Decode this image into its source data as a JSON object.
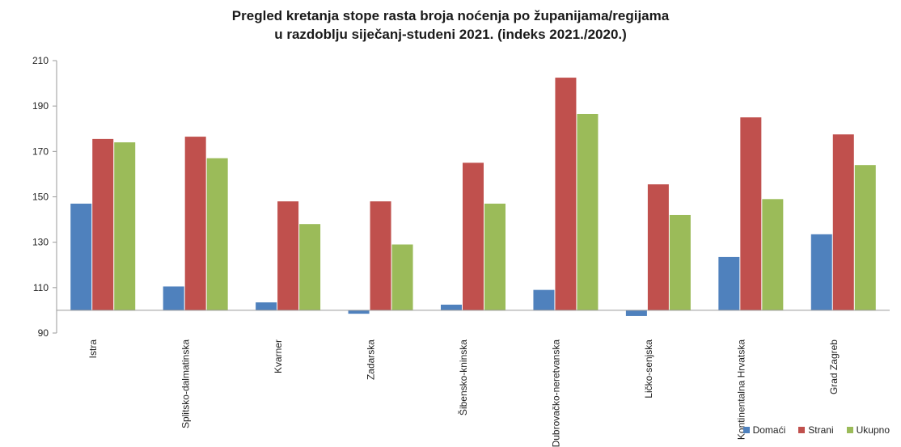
{
  "chart_data": {
    "type": "bar",
    "title_lines": [
      "Pregled kretanja stope rasta broja noćenja po županijama/regijama",
      "u razdoblju siječanj-studeni 2021. (indeks 2021./2020.)"
    ],
    "xlabel": "",
    "ylabel": "",
    "ylim": [
      90,
      210
    ],
    "baseline": 100,
    "yticks": [
      90,
      110,
      130,
      150,
      170,
      190,
      210
    ],
    "grid": false,
    "legend_position": "bottom-right",
    "categories": [
      "Istra",
      "Splitsko-dalmatinska",
      "Kvarner",
      "Zadarska",
      "Šibensko-kninska",
      "Dubrovačko-neretvanska",
      "Ličko-senjska",
      "Kontinentalna Hrvatska",
      "Grad Zagreb"
    ],
    "series": [
      {
        "name": "Domaći",
        "color": "#4F81BD",
        "values": [
          147,
          110.5,
          103.5,
          98.5,
          102.5,
          109,
          97.5,
          123.5,
          133.5
        ]
      },
      {
        "name": "Strani",
        "color": "#C0504D",
        "values": [
          175.5,
          176.5,
          148,
          148,
          165,
          202.5,
          155.5,
          185,
          177.5
        ]
      },
      {
        "name": "Ukupno",
        "color": "#9BBB59",
        "values": [
          174,
          167,
          138,
          129,
          147,
          186.5,
          142,
          149,
          164
        ]
      }
    ]
  }
}
